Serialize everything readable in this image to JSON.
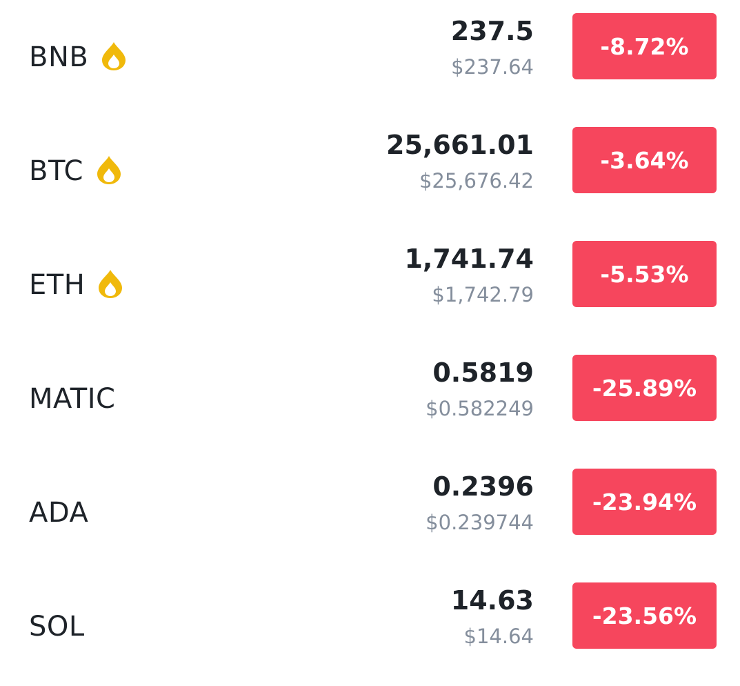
{
  "colors": {
    "text_primary": "#1e2329",
    "text_secondary": "#848e9c",
    "negative_badge": "#f6465d",
    "hot_icon": "#f0b90b"
  },
  "markets": [
    {
      "symbol": "BNB",
      "hot": true,
      "price": "237.5",
      "fiat_price": "$237.64",
      "change": "-8.72%"
    },
    {
      "symbol": "BTC",
      "hot": true,
      "price": "25,661.01",
      "fiat_price": "$25,676.42",
      "change": "-3.64%"
    },
    {
      "symbol": "ETH",
      "hot": true,
      "price": "1,741.74",
      "fiat_price": "$1,742.79",
      "change": "-5.53%"
    },
    {
      "symbol": "MATIC",
      "hot": false,
      "price": "0.5819",
      "fiat_price": "$0.582249",
      "change": "-25.89%"
    },
    {
      "symbol": "ADA",
      "hot": false,
      "price": "0.2396",
      "fiat_price": "$0.239744",
      "change": "-23.94%"
    },
    {
      "symbol": "SOL",
      "hot": false,
      "price": "14.63",
      "fiat_price": "$14.64",
      "change": "-23.56%"
    }
  ],
  "icons": {
    "hot": "fire-icon"
  }
}
